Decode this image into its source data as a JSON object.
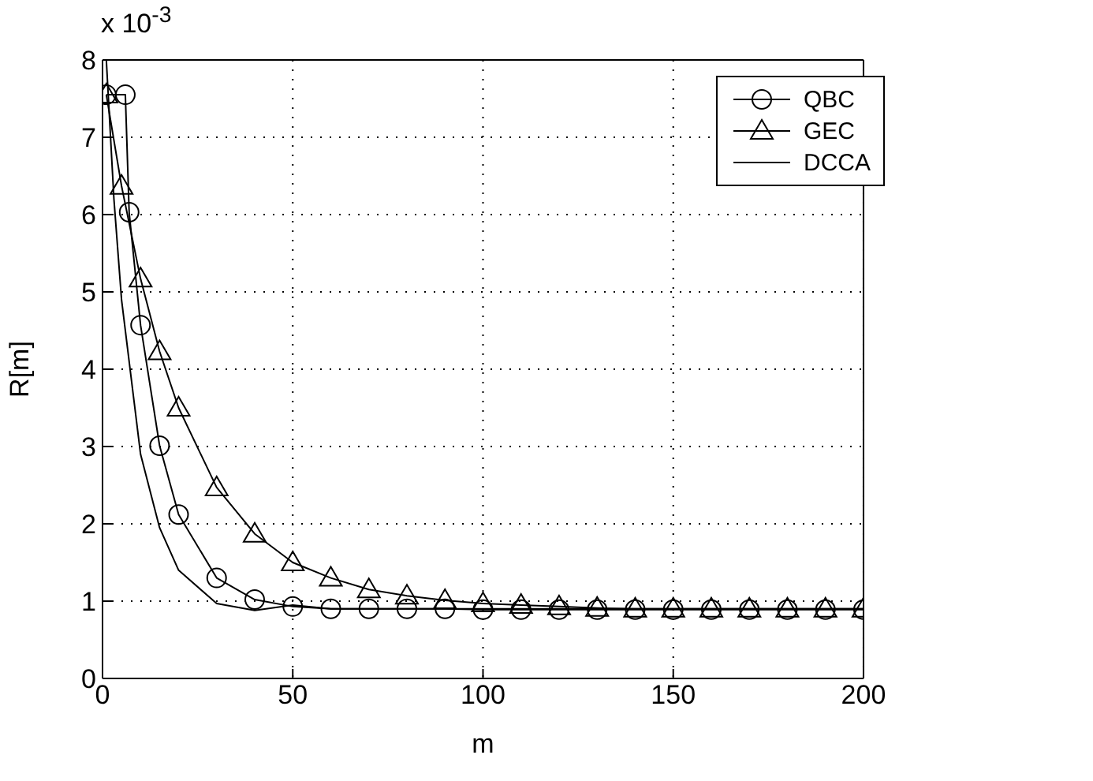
{
  "chart_data": {
    "type": "line",
    "xlabel": "m",
    "ylabel": "R[m]",
    "annotations": [
      "x 10$^{-3}$"
    ],
    "xlim": [
      0,
      200
    ],
    "xticks": [
      0,
      50,
      100,
      150,
      200
    ],
    "ylim": [
      0,
      8
    ],
    "yticks": [
      0,
      1,
      2,
      3,
      4,
      5,
      6,
      7,
      8
    ],
    "grid": true,
    "legend": "top right",
    "line_style": "solid",
    "series": [
      {
        "name": "QBC",
        "color": "#000000",
        "marker": "circle",
        "x": [
          1,
          6,
          7,
          10,
          15,
          20,
          30,
          40,
          50,
          60,
          70,
          80,
          90,
          100,
          110,
          120,
          130,
          140,
          150,
          160,
          170,
          180,
          190,
          200
        ],
        "values": [
          7.55,
          7.55,
          6.03,
          4.57,
          3.01,
          2.12,
          1.3,
          1.02,
          0.93,
          0.9,
          0.9,
          0.9,
          0.9,
          0.89,
          0.89,
          0.89,
          0.89,
          0.89,
          0.89,
          0.89,
          0.89,
          0.89,
          0.89,
          0.89
        ]
      },
      {
        "name": "GEC",
        "color": "#000000",
        "marker": "triangle",
        "x": [
          1,
          5,
          10,
          15,
          20,
          30,
          40,
          50,
          60,
          70,
          80,
          90,
          100,
          110,
          120,
          130,
          140,
          150,
          160,
          170,
          180,
          190,
          200
        ],
        "values": [
          7.55,
          6.37,
          5.17,
          4.23,
          3.5,
          2.47,
          1.87,
          1.5,
          1.3,
          1.15,
          1.07,
          1.01,
          0.97,
          0.95,
          0.93,
          0.91,
          0.9,
          0.9,
          0.9,
          0.9,
          0.9,
          0.9,
          0.9
        ]
      },
      {
        "name": "DCCA",
        "color": "#000000",
        "marker": "none",
        "x": [
          1,
          3,
          5,
          10,
          15,
          20,
          30,
          40,
          50,
          60,
          70,
          80,
          90,
          100,
          110,
          120,
          130,
          140,
          150,
          160,
          170,
          180,
          190,
          200
        ],
        "values": [
          8.0,
          6.2,
          4.9,
          2.9,
          1.95,
          1.4,
          0.97,
          0.88,
          0.95,
          0.9,
          0.9,
          0.9,
          0.9,
          0.9,
          0.9,
          0.9,
          0.9,
          0.9,
          0.9,
          0.9,
          0.9,
          0.9,
          0.9,
          0.9
        ]
      }
    ]
  }
}
